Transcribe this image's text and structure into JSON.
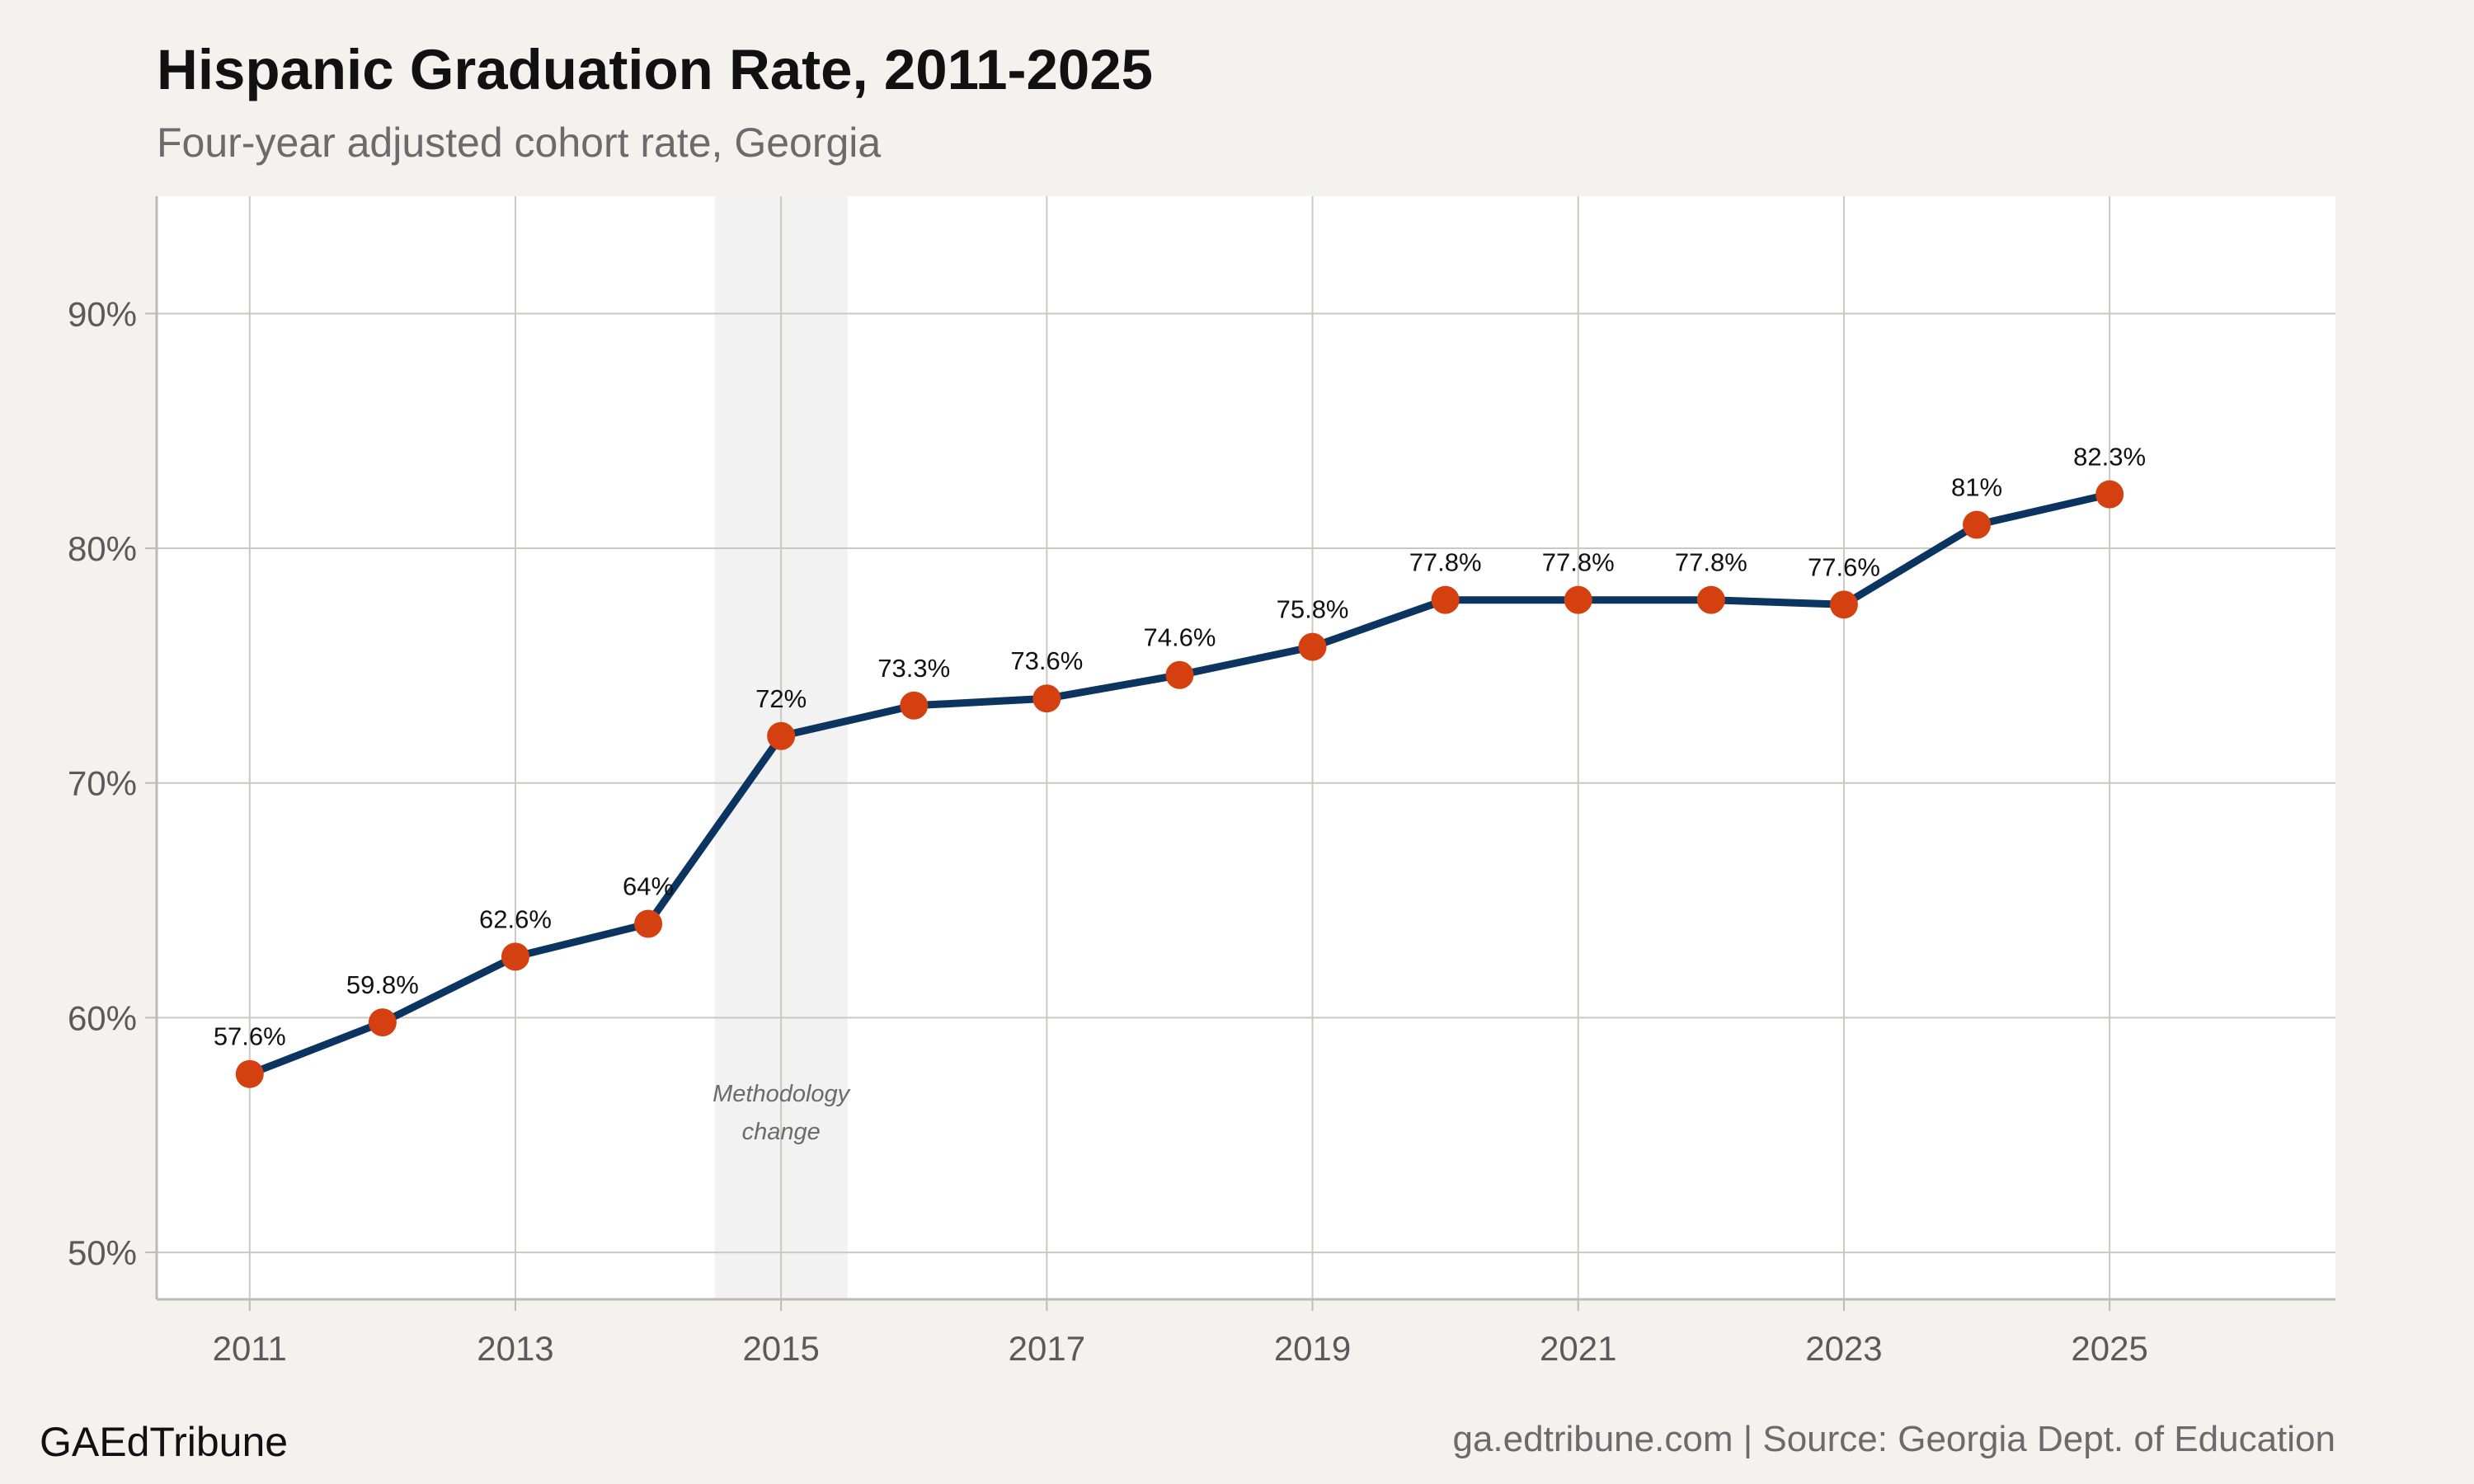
{
  "chart_data": {
    "type": "line",
    "title": "Hispanic Graduation Rate, 2011-2025",
    "subtitle": "Four-year adjusted cohort rate, Georgia",
    "x": [
      2011,
      2012,
      2013,
      2014,
      2015,
      2016,
      2017,
      2018,
      2019,
      2020,
      2021,
      2022,
      2023,
      2024,
      2025
    ],
    "values": [
      57.6,
      59.8,
      62.6,
      64.0,
      72.0,
      73.3,
      73.6,
      74.6,
      75.8,
      77.8,
      77.8,
      77.8,
      77.6,
      81.0,
      82.3
    ],
    "data_labels": [
      "57.6%",
      "59.8%",
      "62.6%",
      "64%",
      "72%",
      "73.3%",
      "73.6%",
      "74.6%",
      "75.8%",
      "77.8%",
      "77.8%",
      "77.8%",
      "77.6%",
      "81%",
      "82.3%"
    ],
    "x_ticks": [
      2011,
      2013,
      2015,
      2017,
      2019,
      2021,
      2023,
      2025
    ],
    "x_tick_labels": [
      "2011",
      "2013",
      "2015",
      "2017",
      "2019",
      "2021",
      "2023",
      "2025"
    ],
    "y_ticks": [
      50,
      60,
      70,
      80,
      90
    ],
    "y_tick_labels": [
      "50%",
      "60%",
      "70%",
      "80%",
      "90%"
    ],
    "xlim": [
      2010.3,
      2026.7
    ],
    "ylim": [
      48,
      95
    ],
    "grid": true,
    "highlight_band": {
      "x_range": [
        2014.5,
        2015.5
      ],
      "label_lines": [
        "Methodology",
        "change"
      ]
    },
    "colors": {
      "line": "#0b3461",
      "marker": "#d4400f",
      "band": "#f2f2f2",
      "panel": "#ffffff",
      "background": "#f4f2ee",
      "grid": "#c9c8c4"
    }
  },
  "footer": {
    "brand": "GAEdTribune",
    "source": "ga.edtribune.com | Source: Georgia Dept. of Education"
  }
}
